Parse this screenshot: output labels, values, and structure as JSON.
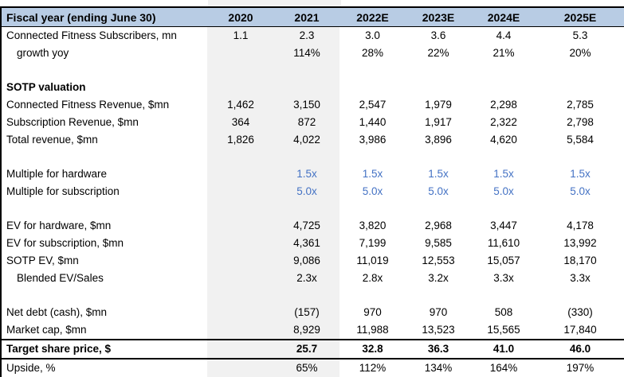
{
  "sheet": {
    "title_row": {
      "label": "Fiscal year (ending June 30)",
      "columns": [
        "2020",
        "2021",
        "2022E",
        "2023E",
        "2024E",
        "2025E"
      ]
    },
    "rows": [
      {
        "label": "Connected Fitness Subscribers, mn",
        "values": [
          "1.1",
          "2.3",
          "3.0",
          "3.6",
          "4.4",
          "5.3"
        ]
      },
      {
        "label": "growth yoy",
        "indent": true,
        "values": [
          "",
          "114%",
          "28%",
          "22%",
          "21%",
          "20%"
        ]
      },
      {
        "type": "blank"
      },
      {
        "label": "SOTP valuation",
        "bold": true,
        "values": [
          "",
          "",
          "",
          "",
          "",
          ""
        ]
      },
      {
        "label": "Connected Fitness Revenue, $mn",
        "values": [
          "1,462",
          "3,150",
          "2,547",
          "1,979",
          "2,298",
          "2,785"
        ]
      },
      {
        "label": "Subscription Revenue, $mn",
        "values": [
          "364",
          "872",
          "1,440",
          "1,917",
          "2,322",
          "2,798"
        ]
      },
      {
        "label": "Total revenue, $mn",
        "values": [
          "1,826",
          "4,022",
          "3,986",
          "3,896",
          "4,620",
          "5,584"
        ]
      },
      {
        "type": "blank"
      },
      {
        "label": "Multiple for hardware",
        "value_color": "assumption",
        "values": [
          "",
          "1.5x",
          "1.5x",
          "1.5x",
          "1.5x",
          "1.5x"
        ]
      },
      {
        "label": "Multiple for subscription",
        "value_color": "assumption",
        "values": [
          "",
          "5.0x",
          "5.0x",
          "5.0x",
          "5.0x",
          "5.0x"
        ]
      },
      {
        "type": "blank"
      },
      {
        "label": "EV for hardware, $mn",
        "values": [
          "",
          "4,725",
          "3,820",
          "2,968",
          "3,447",
          "4,178"
        ]
      },
      {
        "label": "EV for subscription, $mn",
        "values": [
          "",
          "4,361",
          "7,199",
          "9,585",
          "11,610",
          "13,992"
        ]
      },
      {
        "label": "SOTP EV, $mn",
        "values": [
          "",
          "9,086",
          "11,019",
          "12,553",
          "15,057",
          "18,170"
        ]
      },
      {
        "label": "Blended EV/Sales",
        "indent": true,
        "values": [
          "",
          "2.3x",
          "2.8x",
          "3.2x",
          "3.3x",
          "3.3x"
        ]
      },
      {
        "type": "blank"
      },
      {
        "label": "Net debt (cash), $mn",
        "values": [
          "",
          "(157)",
          "970",
          "970",
          "508",
          "(330)"
        ]
      },
      {
        "label": "Market cap, $mn",
        "values": [
          "",
          "8,929",
          "11,988",
          "13,523",
          "15,565",
          "17,840"
        ]
      },
      {
        "label": "Target share price, $",
        "bold": true,
        "emphasis": true,
        "values": [
          "",
          "25.7",
          "32.8",
          "36.3",
          "41.0",
          "46.0"
        ]
      },
      {
        "label": "Upside, %",
        "values": [
          "",
          "65%",
          "112%",
          "134%",
          "164%",
          "197%"
        ]
      }
    ],
    "shaded_columns": [
      0,
      1
    ],
    "colors": {
      "header_bg": "#b8cce4",
      "shaded_col_bg": "#f1f1f1",
      "assumption_text": "#4472c4",
      "border": "#000000"
    }
  }
}
